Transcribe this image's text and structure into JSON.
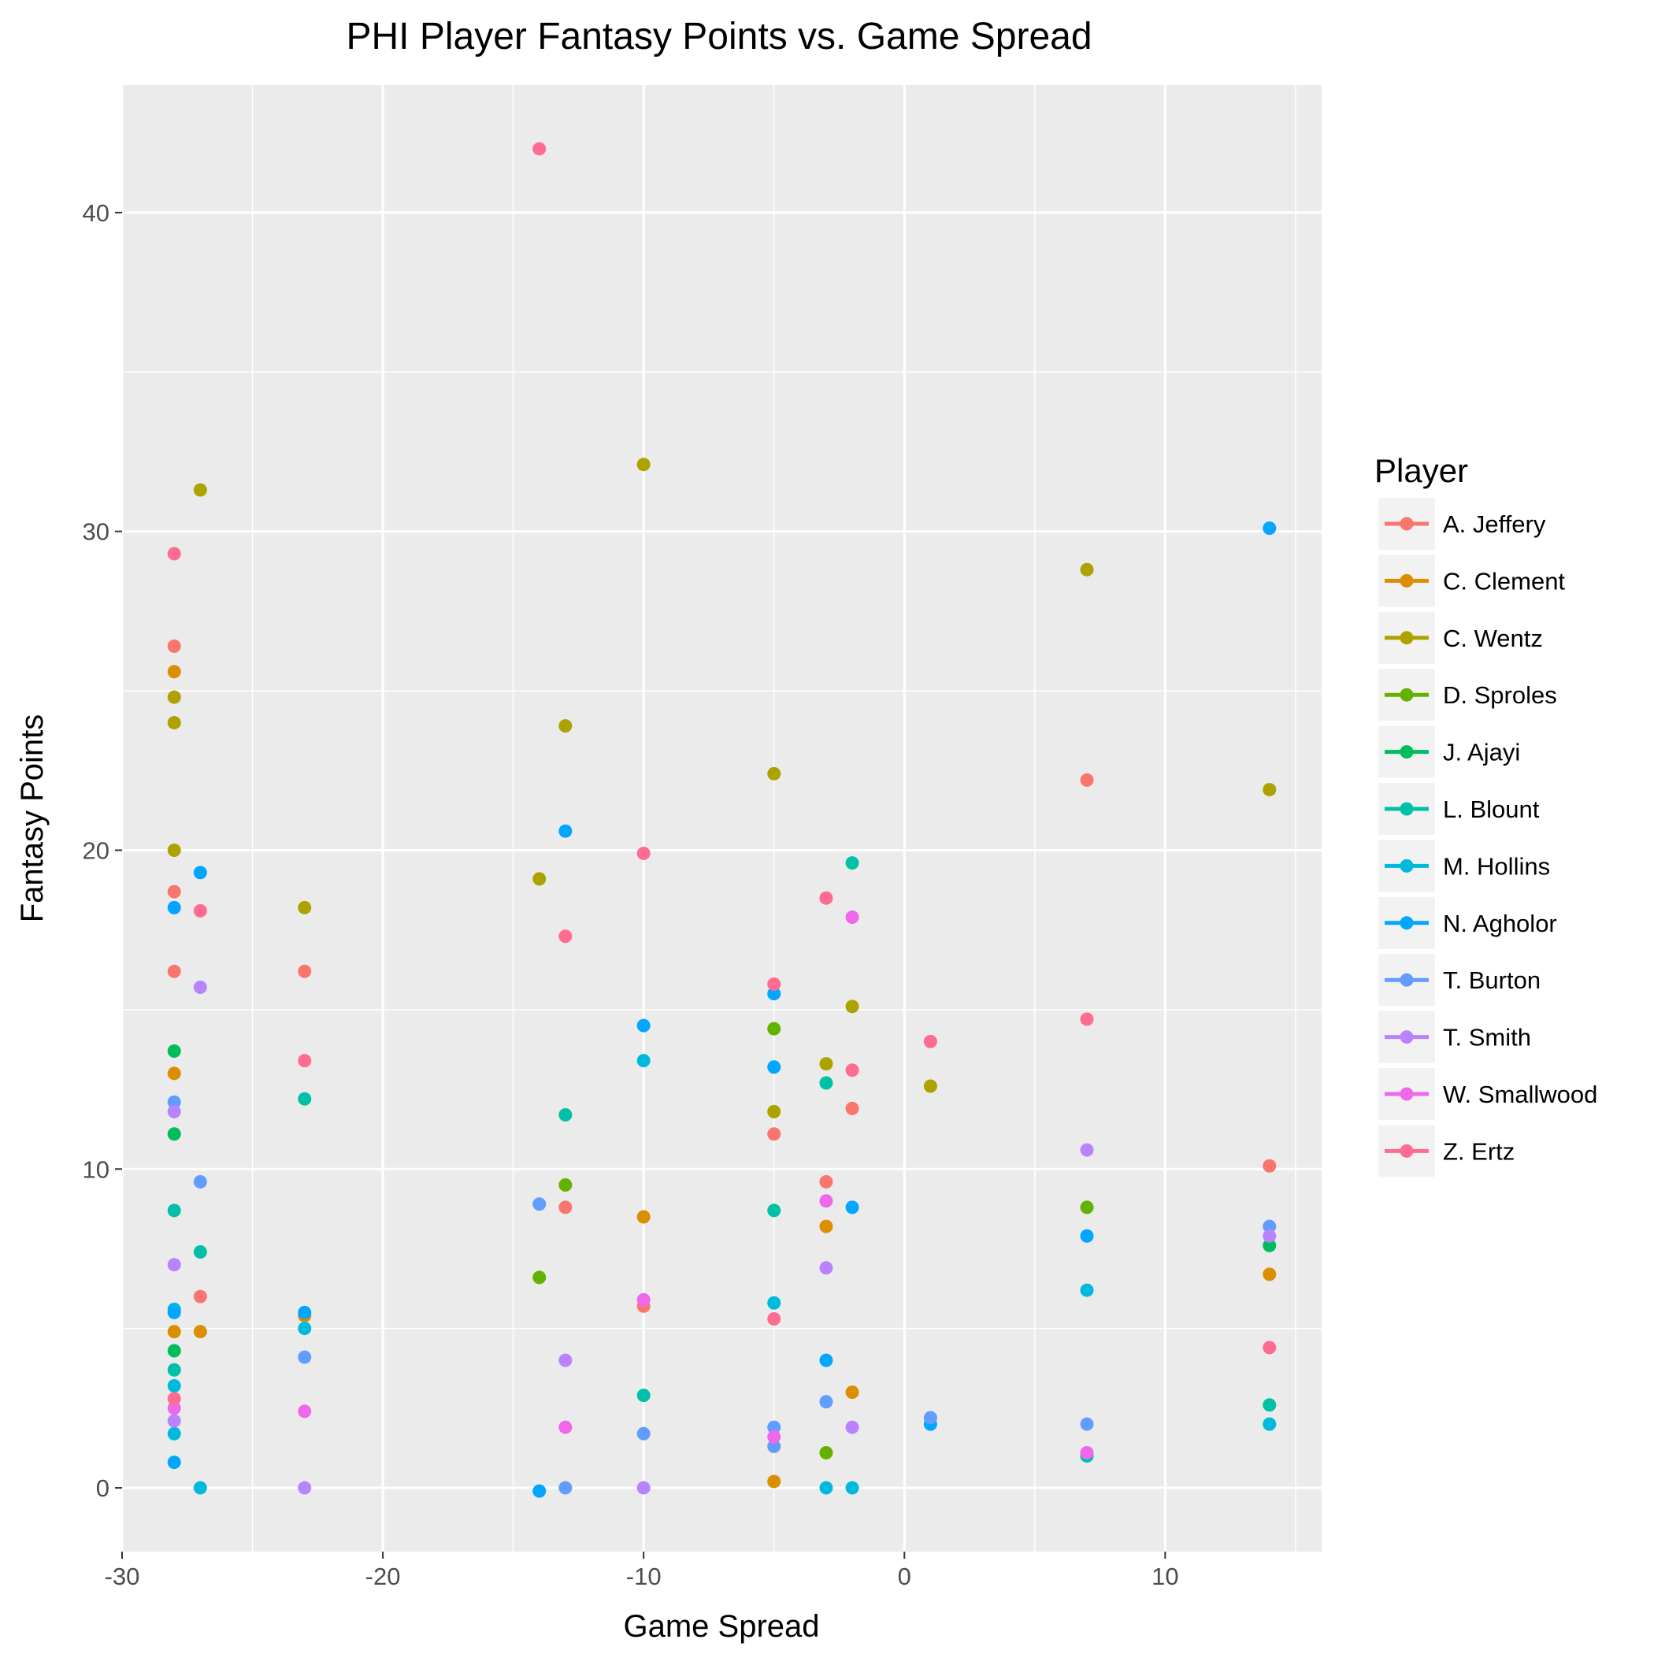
{
  "chart_data": {
    "type": "scatter",
    "title": "PHI Player Fantasy Points vs. Game Spread",
    "xlabel": "Game Spread",
    "ylabel": "Fantasy Points",
    "xlim": [
      -30,
      16
    ],
    "ylim": [
      -2,
      44
    ],
    "xticks": [
      -30,
      -20,
      -10,
      0,
      10
    ],
    "yticks": [
      0,
      10,
      20,
      30,
      40
    ],
    "x_minor_ticks": [
      -25,
      -15,
      -5,
      5,
      15
    ],
    "y_minor_ticks": [
      5,
      15,
      25,
      35
    ],
    "grid": true,
    "legend_title": "Player",
    "legend_position": "right",
    "series": [
      {
        "name": "A. Jeffery",
        "color": "#F8766D",
        "points": [
          [
            -28,
            26.4
          ],
          [
            -28,
            18.7
          ],
          [
            -28,
            16.2
          ],
          [
            -27,
            6.0
          ],
          [
            -23,
            16.2
          ],
          [
            -13,
            8.8
          ],
          [
            -10,
            5.7
          ],
          [
            -5,
            11.1
          ],
          [
            -3,
            9.6
          ],
          [
            -2,
            11.9
          ],
          [
            7,
            22.2
          ],
          [
            14,
            10.1
          ]
        ]
      },
      {
        "name": "C. Clement",
        "color": "#DB8E00",
        "points": [
          [
            -28,
            25.6
          ],
          [
            -28,
            13.0
          ],
          [
            -28,
            4.9
          ],
          [
            -27,
            4.9
          ],
          [
            -23,
            5.4
          ],
          [
            -10,
            8.5
          ],
          [
            -5,
            0.2
          ],
          [
            -3,
            8.2
          ],
          [
            -2,
            3.0
          ],
          [
            14,
            6.7
          ]
        ]
      },
      {
        "name": "C. Wentz",
        "color": "#AEA200",
        "points": [
          [
            -28,
            24.8
          ],
          [
            -28,
            24.0
          ],
          [
            -28,
            20.0
          ],
          [
            -27,
            31.3
          ],
          [
            -23,
            18.2
          ],
          [
            -14,
            19.1
          ],
          [
            -13,
            23.9
          ],
          [
            -10,
            32.1
          ],
          [
            -5,
            22.4
          ],
          [
            -5,
            11.8
          ],
          [
            -3,
            13.3
          ],
          [
            -2,
            15.1
          ],
          [
            1,
            12.6
          ],
          [
            7,
            28.8
          ],
          [
            14,
            21.9
          ]
        ]
      },
      {
        "name": "D. Sproles",
        "color": "#64B200",
        "points": [
          [
            -14,
            6.6
          ],
          [
            -13,
            9.5
          ],
          [
            -5,
            14.4
          ],
          [
            -3,
            1.1
          ],
          [
            7,
            8.8
          ]
        ]
      },
      {
        "name": "J. Ajayi",
        "color": "#00BD5C",
        "points": [
          [
            -28,
            13.7
          ],
          [
            -28,
            11.1
          ],
          [
            -28,
            4.3
          ],
          [
            14,
            7.6
          ]
        ]
      },
      {
        "name": "L. Blount",
        "color": "#00C1A7",
        "points": [
          [
            -28,
            8.7
          ],
          [
            -28,
            3.7
          ],
          [
            -27,
            7.4
          ],
          [
            -23,
            12.2
          ],
          [
            -13,
            11.7
          ],
          [
            -10,
            2.9
          ],
          [
            -5,
            8.7
          ],
          [
            -3,
            12.7
          ],
          [
            -2,
            19.6
          ],
          [
            7,
            1.0
          ],
          [
            14,
            2.6
          ]
        ]
      },
      {
        "name": "M. Hollins",
        "color": "#00BADE",
        "points": [
          [
            -28,
            5.6
          ],
          [
            -28,
            3.2
          ],
          [
            -28,
            1.7
          ],
          [
            -27,
            0.0
          ],
          [
            -23,
            5.0
          ],
          [
            -10,
            13.4
          ],
          [
            -5,
            5.8
          ],
          [
            -3,
            0.0
          ],
          [
            -2,
            0.0
          ],
          [
            7,
            6.2
          ],
          [
            14,
            2.0
          ]
        ]
      },
      {
        "name": "N. Agholor",
        "color": "#00A6FF",
        "points": [
          [
            -28,
            18.2
          ],
          [
            -28,
            5.5
          ],
          [
            -28,
            0.8
          ],
          [
            -27,
            19.3
          ],
          [
            -23,
            5.5
          ],
          [
            -14,
            -0.1
          ],
          [
            -13,
            20.6
          ],
          [
            -10,
            14.5
          ],
          [
            -5,
            15.5
          ],
          [
            -5,
            13.2
          ],
          [
            -3,
            4.0
          ],
          [
            -2,
            8.8
          ],
          [
            1,
            2.0
          ],
          [
            7,
            7.9
          ],
          [
            14,
            30.1
          ]
        ]
      },
      {
        "name": "T. Burton",
        "color": "#B385FF",
        "points": [
          [
            -28,
            12.1
          ],
          [
            -27,
            9.6
          ],
          [
            -23,
            4.1
          ],
          [
            -14,
            8.9
          ],
          [
            -13,
            0.0
          ],
          [
            -10,
            1.7
          ],
          [
            -5,
            1.9
          ],
          [
            -5,
            1.3
          ],
          [
            -3,
            2.7
          ],
          [
            1,
            2.2
          ],
          [
            7,
            2.0
          ],
          [
            14,
            8.2
          ]
        ],
        "color_override": "#619CFF"
      },
      {
        "name": "T. Smith",
        "color": "#B983FF",
        "points": [
          [
            -28,
            11.8
          ],
          [
            -28,
            7.0
          ],
          [
            -28,
            2.1
          ],
          [
            -27,
            15.7
          ],
          [
            -23,
            0.0
          ],
          [
            -13,
            4.0
          ],
          [
            -10,
            0.0
          ],
          [
            -3,
            6.9
          ],
          [
            -2,
            1.9
          ],
          [
            7,
            10.6
          ],
          [
            14,
            7.9
          ]
        ]
      },
      {
        "name": "W. Smallwood",
        "color": "#EF67EB",
        "points": [
          [
            -28,
            2.5
          ],
          [
            -23,
            2.4
          ],
          [
            -13,
            1.9
          ],
          [
            -10,
            5.9
          ],
          [
            -5,
            1.6
          ],
          [
            -3,
            9.0
          ],
          [
            -2,
            17.9
          ],
          [
            7,
            1.1
          ]
        ]
      },
      {
        "name": "Z. Ertz",
        "color": "#FF6C91",
        "points": [
          [
            -28,
            29.3
          ],
          [
            -28,
            2.8
          ],
          [
            -27,
            18.1
          ],
          [
            -23,
            13.4
          ],
          [
            -14,
            42.0
          ],
          [
            -13,
            17.3
          ],
          [
            -10,
            19.9
          ],
          [
            -5,
            15.8
          ],
          [
            -5,
            5.3
          ],
          [
            -3,
            18.5
          ],
          [
            -2,
            13.1
          ],
          [
            1,
            14.0
          ],
          [
            7,
            14.7
          ],
          [
            14,
            4.4
          ]
        ]
      }
    ]
  }
}
